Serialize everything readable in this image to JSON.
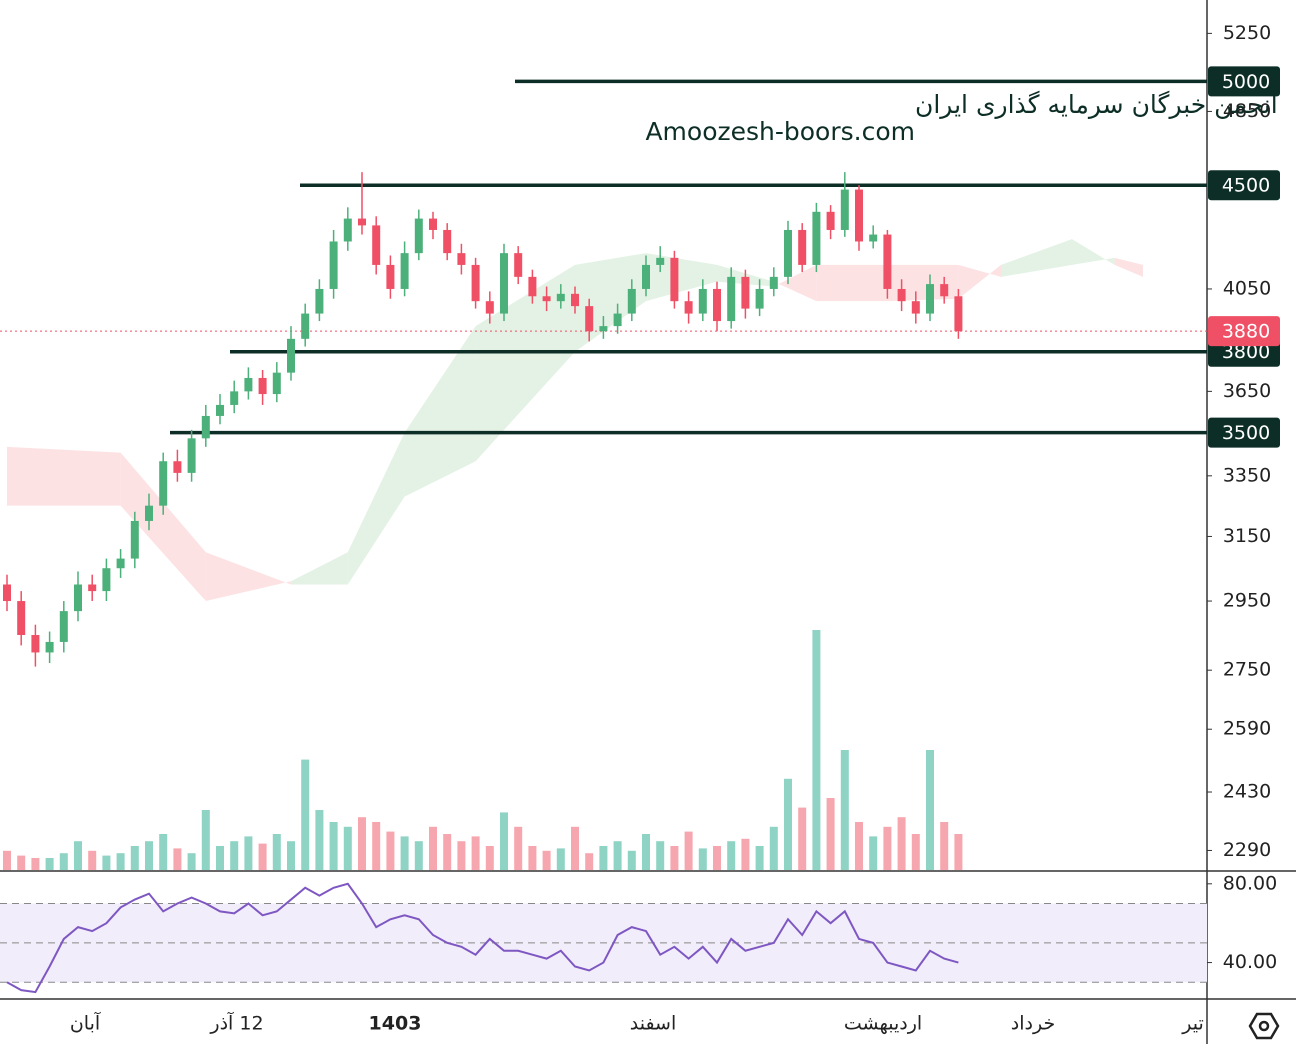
{
  "chart_data": {
    "type": "candlestick",
    "watermark": [
      "انجمن خبرگان سرمایه گذاری ایران",
      "Amoozesh-boors.com"
    ],
    "up_color": "#4cb07a",
    "down_color": "#ef5066",
    "volume_up_color": "#8fd3c4",
    "volume_down_color": "#f6a6ae",
    "open": [
      3000,
      2950,
      2850,
      2800,
      2830,
      2920,
      3000,
      2980,
      3050,
      3080,
      3200,
      3250,
      3400,
      3360,
      3480,
      3560,
      3600,
      3650,
      3700,
      3640,
      3720,
      3850,
      3950,
      4050,
      4250,
      4350,
      4320,
      4150,
      4050,
      4200,
      4350,
      4300,
      4200,
      4150,
      4000,
      3950,
      4200,
      4100,
      4020,
      4000,
      4030,
      3980,
      3880,
      3900,
      3950,
      4050,
      4150,
      4180,
      4000,
      3950,
      4050,
      3920,
      4100,
      3970,
      4050,
      4100,
      4300,
      4150,
      4380,
      4300,
      4480,
      4250,
      4280,
      4050,
      4000,
      3950,
      4070,
      4020
    ],
    "high": [
      3030,
      2980,
      2880,
      2860,
      2950,
      3040,
      3030,
      3080,
      3110,
      3230,
      3290,
      3430,
      3440,
      3510,
      3600,
      3640,
      3690,
      3740,
      3730,
      3760,
      3900,
      3990,
      4090,
      4300,
      4400,
      4560,
      4360,
      4190,
      4250,
      4390,
      4380,
      4330,
      4240,
      4180,
      4040,
      4240,
      4230,
      4130,
      4060,
      4070,
      4060,
      4010,
      3940,
      3990,
      4090,
      4190,
      4230,
      4210,
      4040,
      4090,
      4080,
      4140,
      4130,
      4090,
      4140,
      4340,
      4330,
      4420,
      4410,
      4560,
      4500,
      4320,
      4300,
      4090,
      4040,
      4110,
      4100,
      4050
    ],
    "low": [
      2920,
      2820,
      2760,
      2770,
      2800,
      2890,
      2950,
      2950,
      3020,
      3050,
      3170,
      3220,
      3330,
      3330,
      3450,
      3530,
      3570,
      3620,
      3600,
      3610,
      3690,
      3820,
      3920,
      4010,
      4210,
      4280,
      4110,
      4010,
      4020,
      4170,
      4260,
      4170,
      4110,
      3970,
      3910,
      3920,
      4070,
      3990,
      3960,
      3970,
      3950,
      3840,
      3850,
      3870,
      3920,
      4020,
      4120,
      3970,
      3910,
      3920,
      3880,
      3890,
      3930,
      3940,
      4020,
      4070,
      4120,
      4120,
      4260,
      4270,
      4210,
      4220,
      4010,
      3960,
      3910,
      3920,
      3990,
      3850
    ],
    "close": [
      2950,
      2850,
      2800,
      2830,
      2920,
      3000,
      2980,
      3050,
      3080,
      3200,
      3250,
      3400,
      3360,
      3480,
      3560,
      3600,
      3650,
      3700,
      3640,
      3720,
      3850,
      3950,
      4050,
      4250,
      4350,
      4320,
      4150,
      4050,
      4200,
      4350,
      4300,
      4200,
      4150,
      4000,
      3950,
      4200,
      4100,
      4020,
      4000,
      4030,
      3980,
      3880,
      3900,
      3950,
      4050,
      4150,
      4180,
      4000,
      3950,
      4050,
      3920,
      4100,
      3970,
      4050,
      4100,
      4300,
      4150,
      4380,
      4300,
      4480,
      4250,
      4280,
      4050,
      4000,
      3950,
      4070,
      4020,
      3880
    ],
    "volume": [
      8,
      6,
      5,
      5,
      7,
      12,
      8,
      6,
      7,
      10,
      12,
      15,
      9,
      7,
      25,
      10,
      12,
      14,
      11,
      15,
      12,
      46,
      25,
      20,
      18,
      22,
      20,
      16,
      14,
      12,
      18,
      15,
      12,
      14,
      10,
      24,
      18,
      10,
      8,
      9,
      18,
      7,
      10,
      12,
      8,
      15,
      12,
      10,
      16,
      9,
      10,
      12,
      13,
      10,
      18,
      38,
      26,
      100,
      30,
      50,
      20,
      14,
      18,
      22,
      15,
      50,
      20,
      15
    ],
    "cloud": {
      "index": [
        0,
        8,
        14,
        20,
        24,
        28,
        33,
        40,
        45,
        50,
        54,
        57,
        62,
        67,
        70,
        75,
        78,
        80
      ],
      "span_a": [
        3250,
        3250,
        2950,
        3010,
        3100,
        3500,
        3900,
        4150,
        4200,
        4150,
        4080,
        4000,
        4000,
        4010,
        4150,
        4260,
        4150,
        4100
      ],
      "span_b": [
        3450,
        3430,
        3100,
        3000,
        3000,
        3280,
        3400,
        3800,
        4000,
        4080,
        4060,
        4150,
        4150,
        4150,
        4100,
        4150,
        4180,
        4150
      ],
      "green": "#e3f2e5",
      "red": "#fde2e4"
    },
    "levels": [
      5000,
      4500,
      3800,
      3500
    ],
    "level_color": "#0d2e26",
    "last_price": 3880,
    "ylim": [
      2245,
      5431
    ],
    "log_scale": true,
    "yticks": [
      5250,
      4850,
      4050,
      3650,
      3350,
      3150,
      2950,
      2750,
      2590,
      2430,
      2290
    ],
    "x_labels": [
      "آبان",
      "12 آذر",
      "1403",
      "اسفند",
      "اردیبهشت",
      "خرداد",
      "تیر"
    ],
    "rsi": {
      "values": [
        30,
        26,
        25,
        38,
        52,
        58,
        56,
        60,
        68,
        72,
        75,
        66,
        70,
        73,
        70,
        66,
        65,
        70,
        64,
        66,
        72,
        78,
        74,
        78,
        80,
        70,
        58,
        62,
        64,
        62,
        54,
        50,
        48,
        44,
        52,
        46,
        46,
        44,
        42,
        46,
        38,
        36,
        40,
        54,
        58,
        56,
        44,
        48,
        42,
        48,
        40,
        52,
        46,
        48,
        50,
        62,
        54,
        66,
        60,
        66,
        52,
        50,
        40,
        38,
        36,
        46,
        42,
        40
      ],
      "color": "#7e57c2",
      "ylim": [
        22,
        86
      ],
      "bands": [
        70,
        50,
        30
      ],
      "yticks": [
        {
          "value": 80,
          "label": "80.00"
        },
        {
          "value": 40,
          "label": "40.00"
        }
      ]
    }
  }
}
